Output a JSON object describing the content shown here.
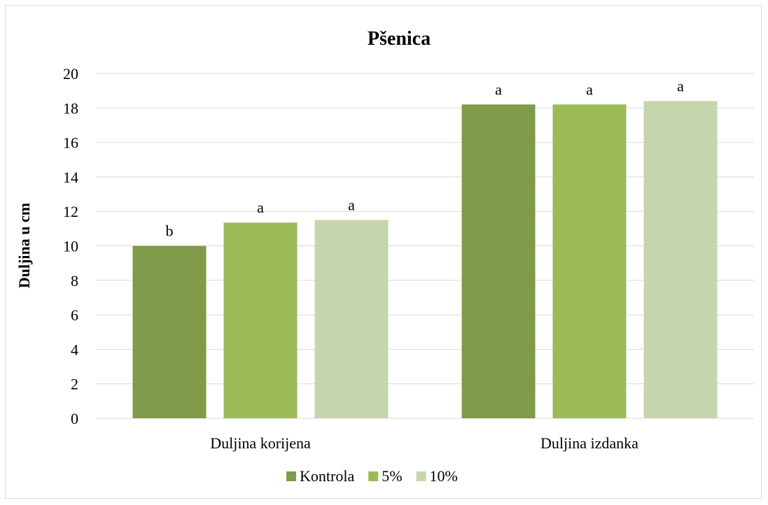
{
  "chart_data": {
    "type": "bar",
    "title": "Pšenica",
    "xlabel": "",
    "ylabel": "Duljina u cm",
    "ylim": [
      0,
      20
    ],
    "yticks": [
      0,
      2,
      4,
      6,
      8,
      10,
      12,
      14,
      16,
      18,
      20
    ],
    "categories": [
      "Duljina korijena",
      "Duljina izdanka"
    ],
    "series": [
      {
        "name": "Kontrola",
        "color": "#7f9a48",
        "values": [
          10.0,
          18.2
        ],
        "labels": [
          "b",
          "a"
        ]
      },
      {
        "name": "5%",
        "color": "#9bbb59",
        "values": [
          11.35,
          18.2
        ],
        "labels": [
          "a",
          "a"
        ]
      },
      {
        "name": "10%",
        "color": "#c6d6ac",
        "values": [
          11.5,
          18.4
        ],
        "labels": [
          "a",
          "a"
        ]
      }
    ],
    "grid": true,
    "legend_position": "bottom"
  }
}
